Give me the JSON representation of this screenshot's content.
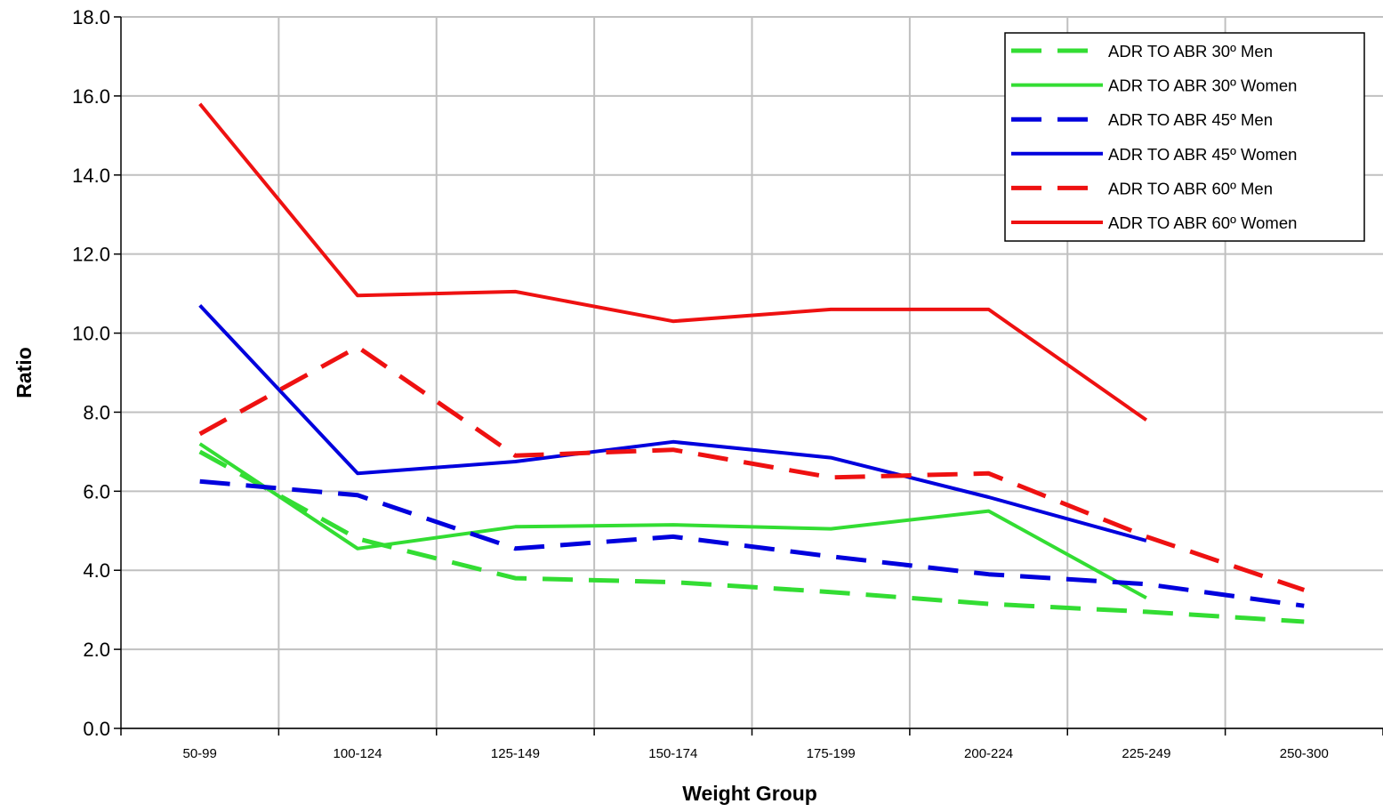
{
  "chart_data": {
    "type": "line",
    "title": "",
    "xlabel": "Weight Group",
    "ylabel": "Ratio",
    "ylim": [
      0,
      18
    ],
    "y_ticks": [
      "0.0",
      "2.0",
      "4.0",
      "6.0",
      "8.0",
      "10.0",
      "12.0",
      "14.0",
      "16.0",
      "18.0"
    ],
    "categories": [
      "50-99",
      "100-124",
      "125-149",
      "150-174",
      "175-199",
      "200-224",
      "225-249",
      "250-300"
    ],
    "grid": true,
    "legend_position": "top-right",
    "series": [
      {
        "name": "ADR TO ABR 30º Men",
        "color": "#33dd33",
        "dash": true,
        "values": [
          7.0,
          4.8,
          3.8,
          3.7,
          3.45,
          3.15,
          2.95,
          2.7
        ]
      },
      {
        "name": "ADR TO ABR 30º Women",
        "color": "#33dd33",
        "dash": false,
        "values": [
          7.2,
          4.55,
          5.1,
          5.15,
          5.05,
          5.5,
          3.3,
          null
        ]
      },
      {
        "name": "ADR TO ABR 45º Men",
        "color": "#0000dd",
        "dash": true,
        "values": [
          6.25,
          5.9,
          4.55,
          4.85,
          4.35,
          3.9,
          3.65,
          3.1
        ]
      },
      {
        "name": "ADR TO ABR 45º Women",
        "color": "#0000dd",
        "dash": false,
        "values": [
          10.7,
          6.45,
          6.75,
          7.25,
          6.85,
          5.85,
          4.75,
          null
        ]
      },
      {
        "name": "ADR TO ABR 60º Men",
        "color": "#ee1111",
        "dash": true,
        "values": [
          7.45,
          9.65,
          6.9,
          7.05,
          6.35,
          6.45,
          4.85,
          3.5
        ]
      },
      {
        "name": "ADR TO ABR 60º Women",
        "color": "#ee1111",
        "dash": false,
        "values": [
          15.8,
          10.95,
          11.05,
          10.3,
          10.6,
          10.6,
          7.8,
          null
        ]
      }
    ]
  }
}
